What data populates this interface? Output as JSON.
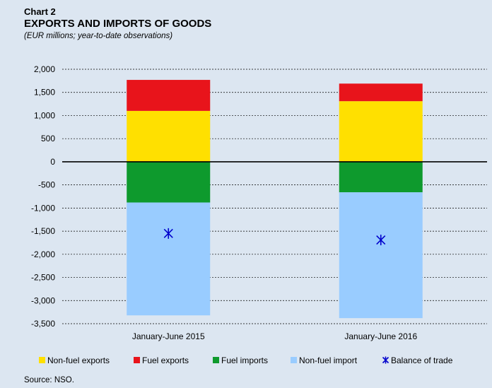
{
  "header": {
    "chart_label": "Chart 2",
    "title": "EXPORTS AND IMPORTS OF GOODS",
    "subtitle": "(EUR millions; year-to-date observations)"
  },
  "footer": {
    "source": "Source: NSO."
  },
  "chart_data": {
    "type": "bar",
    "stacked": true,
    "categories": [
      "January-June 2015",
      "January-June 2016"
    ],
    "series": [
      {
        "name": "Non-fuel exports",
        "color": "#ffe000",
        "values": [
          1100,
          1310
        ]
      },
      {
        "name": "Fuel exports",
        "color": "#e8141b",
        "values": [
          670,
          380
        ]
      },
      {
        "name": "Fuel imports",
        "color": "#0e9a2d",
        "values": [
          -880,
          -660
        ]
      },
      {
        "name": "Non-fuel import",
        "color": "#99ccff",
        "values": [
          -2440,
          -2720
        ]
      }
    ],
    "markers": [
      {
        "name": "Balance of trade",
        "color": "#0000cc",
        "symbol": "asterisk",
        "values": [
          -1550,
          -1690
        ]
      }
    ],
    "ylim": [
      -3500,
      2000
    ],
    "yticks": [
      2000,
      1500,
      1000,
      500,
      0,
      -500,
      -1000,
      -1500,
      -2000,
      -2500,
      -3000,
      -3500
    ],
    "ytick_labels": [
      "2,000",
      "1,500",
      "1,000",
      "500",
      "0",
      "-500",
      "-1,000",
      "-1,500",
      "-2,000",
      "-2,500",
      "-3,000",
      "-3,500"
    ],
    "grid": true,
    "legend_position": "bottom",
    "xlabel": "",
    "ylabel": ""
  }
}
